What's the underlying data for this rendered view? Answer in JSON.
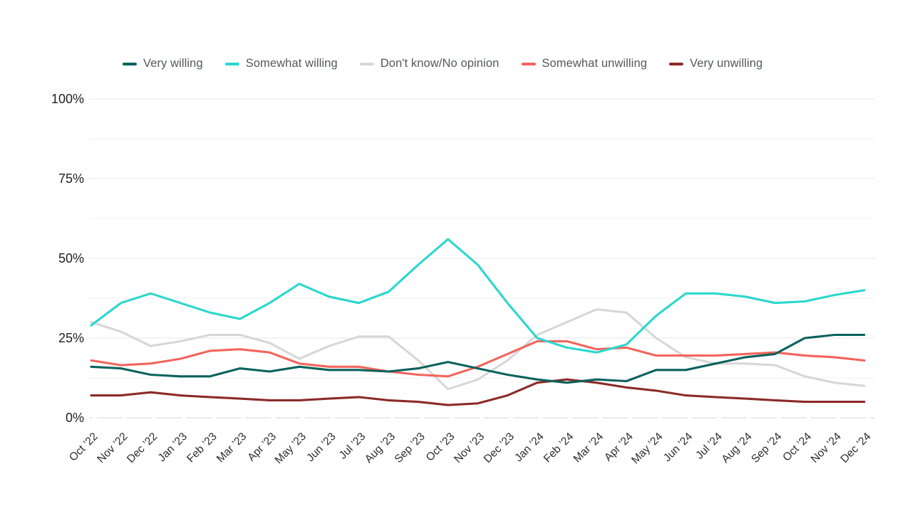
{
  "chart_data": {
    "type": "line",
    "title": "",
    "legend_position": "top",
    "x_labels": [
      "Oct ’22",
      "Nov ’22",
      "Dec ’22",
      "Jan ’23",
      "Feb ’23",
      "Mar ’23",
      "Apr ’23",
      "May ’23",
      "Jun ’23",
      "Jul ’23",
      "Aug ’23",
      "Sep ’23",
      "Oct ’23",
      "Nov ’23",
      "Dec ’23",
      "Jan ’24",
      "Feb ’24",
      "Mar ’24",
      "Apr ’24",
      "May ’24",
      "Jun ’24",
      "Jul ’24",
      "Aug ’24",
      "Sep ’24",
      "Oct ’24",
      "Nov ’24",
      "Dec ’24"
    ],
    "y_axis": {
      "min": 0,
      "max": 100,
      "major_step": 25,
      "minor_step": 12.5,
      "unit": "%"
    },
    "y_tick_labels": [
      "0%",
      "25%",
      "50%",
      "75%",
      "100%"
    ],
    "grid": {
      "major_color": "#e7e7e7",
      "minor_color": "#f0f0f0",
      "axis_color": "#dcdcdc"
    },
    "text_colors": {
      "y_tick": "#1f1f1f",
      "x_tick": "#2d2d2d",
      "legend": "#54585a"
    },
    "series": [
      {
        "name": "Very willing",
        "color": "#0a625c",
        "values": [
          16,
          15.5,
          13.5,
          13,
          13,
          15.5,
          14.5,
          16,
          15,
          15,
          14.5,
          15.5,
          17.5,
          15.5,
          13.5,
          12,
          11,
          12,
          11.5,
          15,
          15,
          17,
          19,
          20,
          25,
          26,
          26
        ]
      },
      {
        "name": "Somewhat willing",
        "color": "#2bd7cd",
        "values": [
          29,
          36,
          39,
          36,
          33,
          31,
          36,
          42,
          38,
          36,
          39.5,
          48,
          56,
          48,
          36,
          25,
          22,
          20.5,
          23,
          32,
          39,
          39,
          38,
          36,
          36.5,
          38.5,
          40
        ]
      },
      {
        "name": "Don't know/No opinion",
        "color": "#d7d7d7",
        "values": [
          30,
          27,
          22.5,
          24,
          26,
          26,
          23.5,
          18.5,
          22.5,
          25.5,
          25.5,
          18,
          9,
          12,
          18,
          26,
          30,
          34,
          33,
          25,
          19,
          17,
          17,
          16.5,
          13,
          11,
          10
        ]
      },
      {
        "name": "Somewhat unwilling",
        "color": "#f4645c",
        "values": [
          18,
          16.5,
          17,
          18.5,
          21,
          21.5,
          20.5,
          17,
          16,
          16,
          14.5,
          13.5,
          13,
          16,
          20,
          24,
          24,
          21.5,
          22,
          19.5,
          19.5,
          19.5,
          20,
          20.5,
          19.5,
          19,
          18
        ]
      },
      {
        "name": "Very unwilling",
        "color": "#8c2b27",
        "values": [
          7,
          7,
          8,
          7,
          6.5,
          6,
          5.5,
          5.5,
          6,
          6.5,
          5.5,
          5,
          4,
          4.5,
          7,
          11,
          12,
          11,
          9.5,
          8.5,
          7,
          6.5,
          6,
          5.5,
          5,
          5,
          5
        ]
      }
    ]
  }
}
